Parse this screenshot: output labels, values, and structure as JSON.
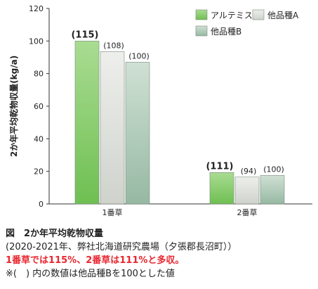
{
  "chart_data": {
    "type": "bar",
    "ylabel": "2か年平均乾物収量(kg/a)",
    "ylim": [
      0,
      120
    ],
    "yticks": [
      0,
      20,
      40,
      60,
      80,
      100,
      120
    ],
    "categories": [
      "1番草",
      "2番草"
    ],
    "series": [
      {
        "name": "アルテミス",
        "values": [
          100,
          19.3
        ],
        "labels": [
          "115",
          "111"
        ],
        "color": "#8ecf73"
      },
      {
        "name": "他品種A",
        "values": [
          93.5,
          16.5
        ],
        "labels": [
          "108",
          "94"
        ],
        "color": "#dfe3dc"
      },
      {
        "name": "他品種B",
        "values": [
          87,
          17.5
        ],
        "labels": [
          "100",
          "100"
        ],
        "color": "#b6d1c0"
      }
    ],
    "legend_position": "top-right",
    "grid": false
  },
  "caption": {
    "title": "図　2か年平均乾物収量",
    "period": "(2020-2021年、弊社北海道研究農場（夕張郡長沼町））",
    "result": "1番草では115%、2番草は111%と多収。",
    "note": "※(　) 内の数値は他品種Bを100とした値"
  }
}
